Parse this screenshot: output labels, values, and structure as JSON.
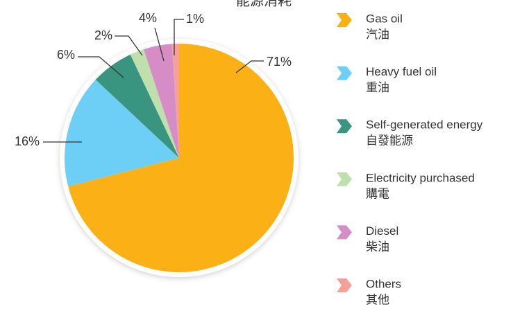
{
  "chart_data": {
    "type": "pie",
    "title": "能源消耗",
    "categories": [
      "Gas oil",
      "Heavy fuel oil",
      "Self-generated energy",
      "Electricity purchased",
      "Diesel",
      "Others"
    ],
    "categories_zh": [
      "汽油",
      "重油",
      "自發能源",
      "購電",
      "柴油",
      "其他"
    ],
    "values": [
      71,
      16,
      6,
      2,
      4,
      1
    ],
    "value_labels": [
      "71%",
      "16%",
      "6%",
      "2%",
      "4%",
      "1%"
    ],
    "colors": [
      "#fbb116",
      "#6dcff6",
      "#3a9580",
      "#bfe0ad",
      "#d68cc4",
      "#f6a09a"
    ]
  }
}
